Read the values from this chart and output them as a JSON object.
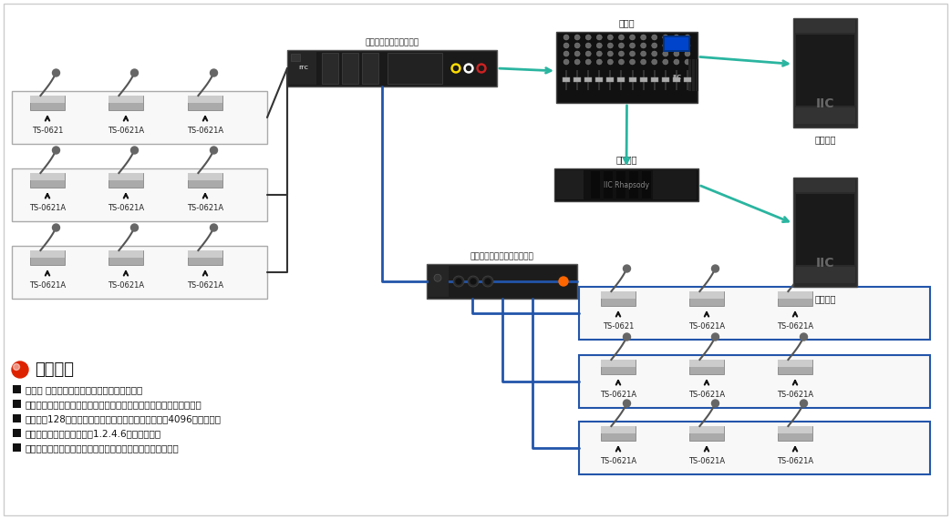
{
  "bg_color": "#ffffff",
  "main_unit_label": "高集成数字会议系统主机",
  "ext_unit_label": "高集成数字会议系统扩展主机",
  "mixer_label": "调音台",
  "amp_label": "专业功放",
  "speaker_label1": "专业音筱",
  "speaker_label2": "专业音筱",
  "bullet_title": "应用功能",
  "bullets": [
    "会议讨 论发言功能，主席单元具有发言优先权",
    "支持先进先出模式、普通模式、自由模式、申请发言四种会议发言模式",
    "单机支持128个会议发言单元，增加扩展主机后可支持4096个发言单元",
    "可设置会议同时发言人数，1.2.4.6发言人数可选",
    "通过扩声系统，实现会议扩声，高保真、高灵敏度的拾音效果"
  ],
  "green": "#2ab5a0",
  "blue": "#2255aa",
  "black_line": "#333333",
  "dark_box": "#1c1c1c",
  "text_color": "#222222",
  "left_row1_labels": [
    "TS-0621",
    "TS-0621A",
    "TS-0621A"
  ],
  "left_row2_labels": [
    "TS-0621A",
    "TS-0621A",
    "TS-0621A"
  ],
  "left_row3_labels": [
    "TS-0621A",
    "TS-0621A",
    "TS-0621A"
  ],
  "right_row1_labels": [
    "TS-0621",
    "TS-0621A",
    "TS-0621A"
  ],
  "right_row2_labels": [
    "TS-0621A",
    "TS-0621A",
    "TS-0621A"
  ],
  "right_row3_labels": [
    "TS-0621A",
    "TS-0621A",
    "TS-0621A"
  ]
}
